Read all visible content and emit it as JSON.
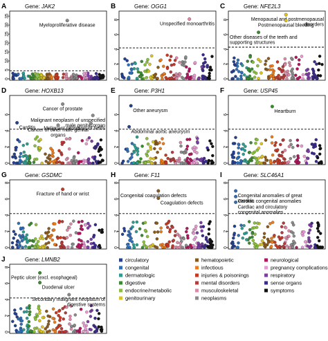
{
  "figure": {
    "ylabel": "−log10(P)",
    "gene_prefix": "Gene:"
  },
  "chart_data": [
    {
      "type": "scatter",
      "panel": "A",
      "gene": "JAK2",
      "ylim": [
        0,
        37
      ],
      "yticks": [
        0,
        5,
        10,
        15,
        20,
        25,
        30,
        35
      ],
      "threshold": 4.5,
      "annotations": [
        {
          "text": "Myeloproliferative disease",
          "x": 0.6,
          "y": 32.5,
          "category": "neoplasms"
        }
      ]
    },
    {
      "type": "scatter",
      "panel": "B",
      "gene": "OGG1",
      "ylim": [
        0,
        9
      ],
      "yticks": [
        0,
        2,
        4,
        6,
        8
      ],
      "threshold": 4.2,
      "annotations": [
        {
          "text": "Unspecified monoarthritis",
          "x": 0.74,
          "y": 8.1,
          "category": "musculoskeletal"
        }
      ]
    },
    {
      "type": "scatter",
      "panel": "C",
      "gene": "NFE2L3",
      "ylim": [
        0,
        9
      ],
      "yticks": [
        0,
        2,
        4,
        6,
        8
      ],
      "threshold": 4.3,
      "annotations": [
        {
          "text": "Menopausal and postmenopausal disorders",
          "x": 0.6,
          "y": 8.7,
          "category": "genitourinary"
        },
        {
          "text": "Postmenopausal bleeding",
          "x": 0.6,
          "y": 7.9,
          "category": "genitourinary"
        },
        {
          "text": "Other diseases of the teeth and supporting structures",
          "x": 0.3,
          "y": 6.3,
          "category": "digestive"
        }
      ]
    },
    {
      "type": "scatter",
      "panel": "D",
      "gene": "HOXB13",
      "ylim": [
        0,
        8.2
      ],
      "yticks": [
        0,
        2,
        4,
        6
      ],
      "threshold": 4.2,
      "annotations": [
        {
          "text": "Carditis",
          "x": 0.05,
          "y": 5.0,
          "category": "circulatory"
        },
        {
          "text": "Cancer of prostate",
          "x": 0.55,
          "y": 7.3,
          "category": "neoplasms"
        },
        {
          "text": "Malignant neoplasm of unspecified male genital organ",
          "x": 0.88,
          "y": 5.9,
          "category": "neoplasms"
        },
        {
          "text": "Cancer of other male genital organs",
          "x": 0.5,
          "y": 4.7,
          "category": "neoplasms"
        },
        {
          "text": "Malignant neoplasm of testis",
          "x": 0.86,
          "y": 4.9,
          "category": "neoplasms"
        }
      ]
    },
    {
      "type": "scatter",
      "panel": "E",
      "gene": "P3H1",
      "ylim": [
        0,
        8.2
      ],
      "yticks": [
        0,
        2,
        4,
        6
      ],
      "threshold": 4.2,
      "annotations": [
        {
          "text": "Other aneurysm",
          "x": 0.1,
          "y": 7.1,
          "category": "circulatory"
        },
        {
          "text": "Abdominal aortic aneurysm",
          "x": 0.08,
          "y": 4.5,
          "category": "circulatory"
        }
      ]
    },
    {
      "type": "scatter",
      "panel": "F",
      "gene": "USP45",
      "ylim": [
        0,
        8.2
      ],
      "yticks": [
        0,
        2,
        4,
        6
      ],
      "threshold": 4.2,
      "annotations": [
        {
          "text": "Heartburn",
          "x": 0.45,
          "y": 7.0,
          "category": "digestive"
        }
      ]
    },
    {
      "type": "scatter",
      "panel": "G",
      "gene": "GSDMC",
      "ylim": [
        0,
        8.2
      ],
      "yticks": [
        0,
        2,
        4,
        6,
        8
      ],
      "threshold": 4.2,
      "annotations": [
        {
          "text": "Fracture of hand or wrist",
          "x": 0.55,
          "y": 7.2,
          "category": "injuries & poisonings"
        }
      ]
    },
    {
      "type": "scatter",
      "panel": "H",
      "gene": "F11",
      "ylim": [
        0,
        8.2
      ],
      "yticks": [
        0,
        2,
        4,
        6,
        8
      ],
      "threshold": 4.2,
      "annotations": [
        {
          "text": "Congenital coagulation defects",
          "x": 0.4,
          "y": 7.0,
          "category": "hematopoietic"
        },
        {
          "text": "Coagulation defects",
          "x": 0.4,
          "y": 6.1,
          "category": "hematopoietic"
        }
      ]
    },
    {
      "type": "scatter",
      "panel": "I",
      "gene": "SLC46A1",
      "ylim": [
        0,
        8.2
      ],
      "yticks": [
        0,
        2,
        4,
        6,
        8
      ],
      "threshold": 4.2,
      "annotations": [
        {
          "text": "Congenital anomalies of great vessels",
          "x": 0.05,
          "y": 7.0,
          "category": "congenital"
        },
        {
          "text": "Cardiac congenital anomalies",
          "x": 0.05,
          "y": 6.3,
          "category": "congenital"
        },
        {
          "text": "Cardiac and circulatory congenital anomalies",
          "x": 0.05,
          "y": 5.6,
          "category": "congenital"
        }
      ]
    },
    {
      "type": "scatter",
      "panel": "J",
      "gene": "LMNB2",
      "ylim": [
        0,
        8.2
      ],
      "yticks": [
        0,
        2,
        4,
        6,
        8
      ],
      "threshold": 4.2,
      "annotations": [
        {
          "text": "Peptic ulcer (excl. esophageal)",
          "x": 0.3,
          "y": 7.3,
          "category": "digestive"
        },
        {
          "text": "Duodenal ulcer",
          "x": 0.3,
          "y": 6.1,
          "category": "digestive"
        },
        {
          "text": "Secondary malignant neoplasm of digestive systems",
          "x": 0.62,
          "y": 4.6,
          "category": "neoplasms"
        }
      ]
    }
  ],
  "legend": {
    "items": [
      {
        "label": "circulatory",
        "color": "#25408f"
      },
      {
        "label": "congenital",
        "color": "#2f6db5"
      },
      {
        "label": "dermatologic",
        "color": "#2e9d8f"
      },
      {
        "label": "digestive",
        "color": "#3a8c2f"
      },
      {
        "label": "endocrine/metabolic",
        "color": "#8cbf3f"
      },
      {
        "label": "genitourinary",
        "color": "#d9c228"
      },
      {
        "label": "hematopoietic",
        "color": "#8a5a1c"
      },
      {
        "label": "infectious",
        "color": "#e87d1e"
      },
      {
        "label": "injuries & poisonings",
        "color": "#c63a22"
      },
      {
        "label": "mental disorders",
        "color": "#b53a3a"
      },
      {
        "label": "musculoskeletal",
        "color": "#d98aa8"
      },
      {
        "label": "neoplasms",
        "color": "#8a8a8a"
      },
      {
        "label": "neurological",
        "color": "#b0175f"
      },
      {
        "label": "pregnancy complications",
        "color": "#e59ad0"
      },
      {
        "label": "respiratory",
        "color": "#7b3ea3"
      },
      {
        "label": "sense organs",
        "color": "#3b2a8c"
      },
      {
        "label": "symptoms",
        "color": "#111111"
      }
    ]
  }
}
